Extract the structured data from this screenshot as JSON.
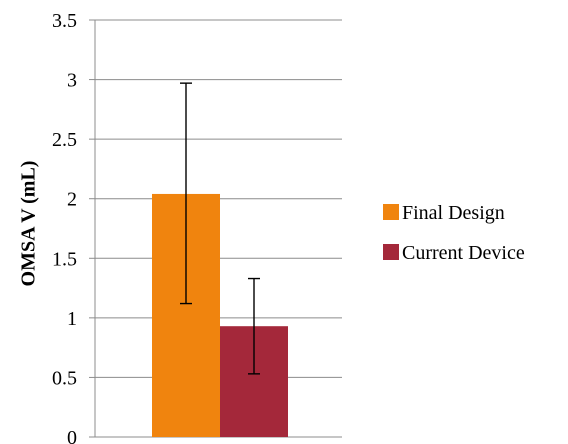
{
  "chart_data": {
    "type": "bar",
    "title": "",
    "xlabel": "",
    "ylabel": "OMSA V (mL)",
    "ylim": [
      0,
      3.5
    ],
    "yticks": [
      "0",
      "0.5",
      "1",
      "1.5",
      "2",
      "2.5",
      "3",
      "3.5"
    ],
    "grid": true,
    "legend_position": "right",
    "series": [
      {
        "name": "Final Design",
        "value": 2.04,
        "error_low": 1.12,
        "error_high": 2.97,
        "color": "#F0840E"
      },
      {
        "name": "Current Device",
        "value": 0.93,
        "error_low": 0.53,
        "error_high": 1.33,
        "color": "#A4283A"
      }
    ]
  }
}
